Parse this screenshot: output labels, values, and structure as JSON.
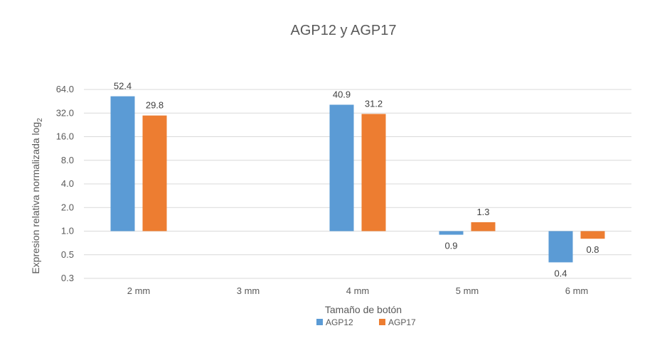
{
  "chart_data": {
    "type": "bar",
    "title": "AGP12 y AGP17",
    "xlabel": "Tamaño de botón",
    "ylabel": "Expresion relativa normalizada log",
    "ylabel_sub": "2",
    "yscale": "log2",
    "baseline": 1.0,
    "ylim": [
      0.25,
      64.0
    ],
    "yticks": [
      "64.0",
      "32.0",
      "16.0",
      "8.0",
      "4.0",
      "2.0",
      "1.0",
      "0.5",
      "0.3"
    ],
    "ytick_values": [
      64,
      32,
      16,
      8,
      4,
      2,
      1,
      0.5,
      0.25
    ],
    "categories": [
      "2 mm",
      "3 mm",
      "4 mm",
      "5 mm",
      "6 mm"
    ],
    "series": [
      {
        "name": "AGP12",
        "color": "#5B9BD5",
        "values": [
          52.4,
          null,
          40.9,
          0.9,
          0.4
        ],
        "labels": [
          "52.4",
          "",
          "40.9",
          "0.9",
          "0.4"
        ]
      },
      {
        "name": "AGP17",
        "color": "#ED7D31",
        "values": [
          29.8,
          null,
          31.2,
          1.3,
          0.8
        ],
        "labels": [
          "29.8",
          "",
          "31.2",
          "1.3",
          "0.8"
        ]
      }
    ],
    "grid": true,
    "legend_position": "bottom"
  }
}
